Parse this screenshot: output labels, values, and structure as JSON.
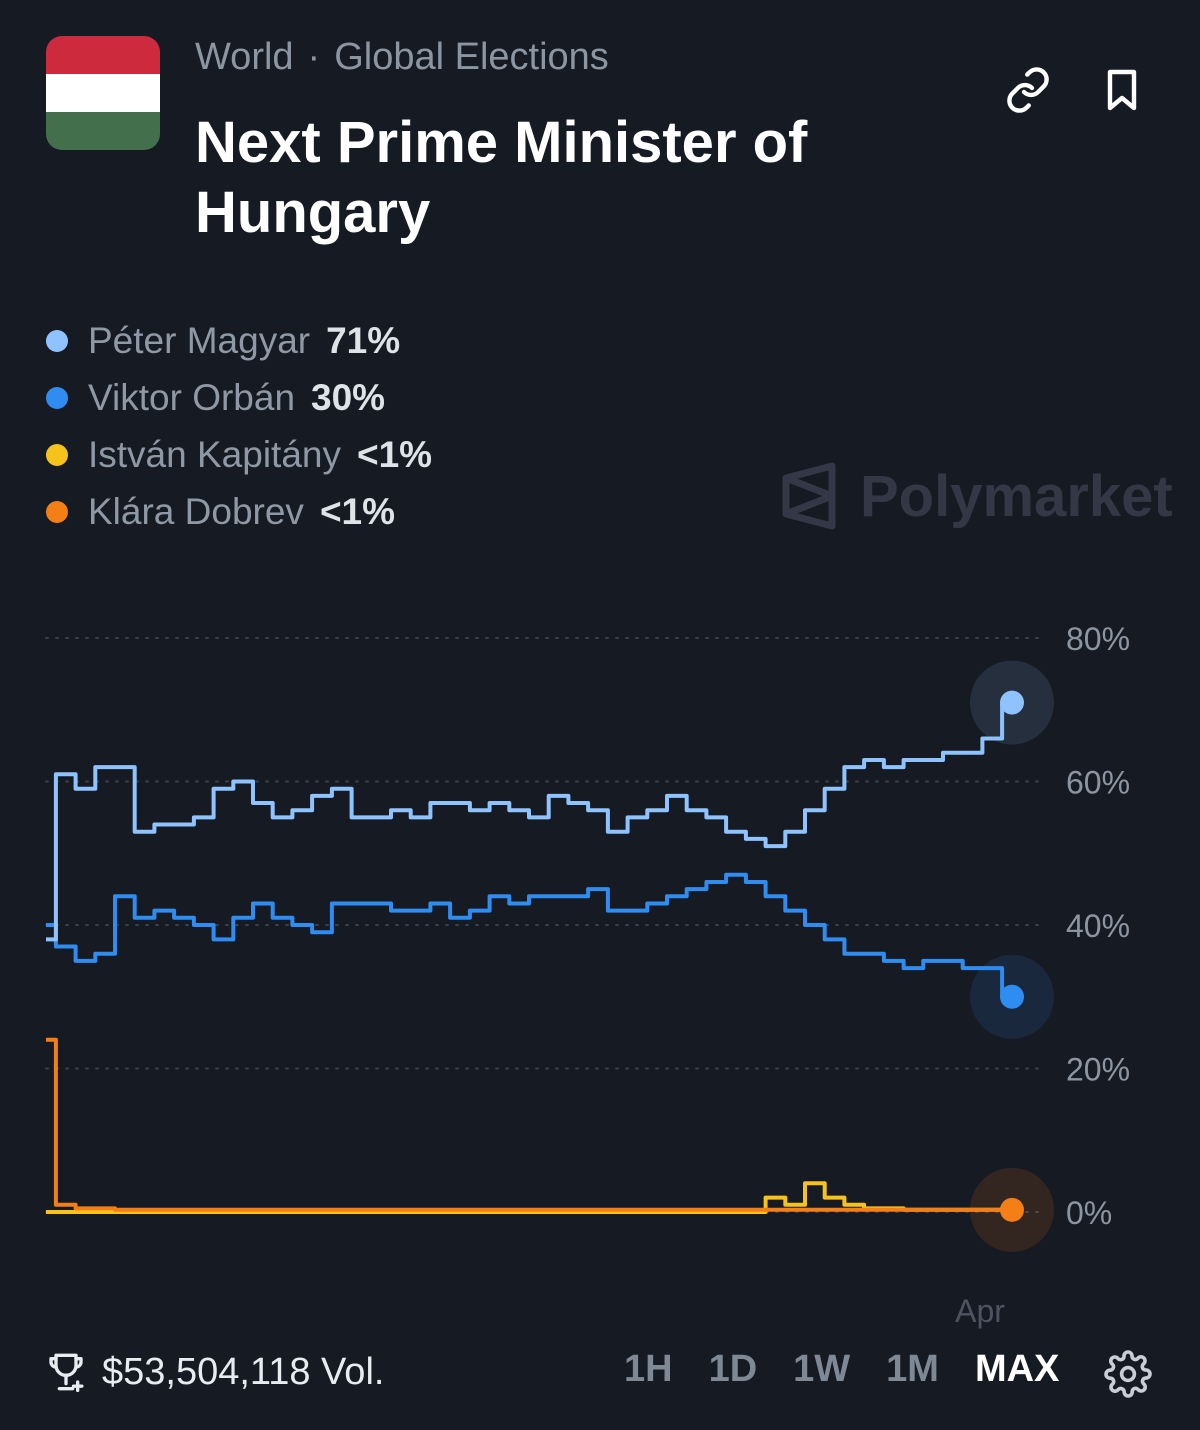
{
  "header": {
    "breadcrumb": [
      "World",
      "Global Elections"
    ],
    "breadcrumb_sep": "·",
    "title": "Next Prime Minister of Hungary",
    "flag_colors": [
      "#cd2a3e",
      "#ffffff",
      "#436f4d"
    ]
  },
  "actions": {
    "link_icon": "link-icon",
    "bookmark_icon": "bookmark-icon"
  },
  "legend": [
    {
      "name": "Péter Magyar",
      "pct": "71%",
      "color": "#8ec3ff"
    },
    {
      "name": "Viktor Orbán",
      "pct": "30%",
      "color": "#2f8cf0"
    },
    {
      "name": "István Kapitány",
      "pct": "<1%",
      "color": "#f6c21c"
    },
    {
      "name": "Klára Dobrev",
      "pct": "<1%",
      "color": "#f57f17"
    }
  ],
  "watermark": "Polymarket",
  "chart_data": {
    "type": "line",
    "y_ticks": [
      "80%",
      "60%",
      "40%",
      "20%",
      "0%"
    ],
    "ylim": [
      0,
      80
    ],
    "x_tick_labels": [
      "Apr"
    ],
    "grid": "dotted horizontal",
    "series": [
      {
        "name": "Péter Magyar",
        "color": "#8ec3ff",
        "values": [
          38,
          61,
          59,
          62,
          62,
          53,
          54,
          54,
          55,
          59,
          60,
          57,
          55,
          56,
          58,
          59,
          55,
          55,
          56,
          55,
          57,
          57,
          56,
          57,
          56,
          55,
          58,
          57,
          56,
          53,
          55,
          56,
          58,
          56,
          55,
          53,
          52,
          51,
          53,
          56,
          59,
          62,
          63,
          62,
          63,
          63,
          64,
          64,
          66,
          71
        ]
      },
      {
        "name": "Viktor Orbán",
        "color": "#2f8cf0",
        "values": [
          40,
          37,
          35,
          36,
          44,
          41,
          42,
          41,
          40,
          38,
          41,
          43,
          41,
          40,
          39,
          43,
          43,
          43,
          42,
          42,
          43,
          41,
          42,
          44,
          43,
          44,
          44,
          44,
          45,
          42,
          42,
          43,
          44,
          45,
          46,
          47,
          46,
          44,
          42,
          40,
          38,
          36,
          36,
          35,
          34,
          35,
          35,
          34,
          34,
          30
        ]
      },
      {
        "name": "István Kapitány",
        "color": "#f6c21c",
        "values": [
          0,
          0,
          0,
          0,
          0,
          0,
          0,
          0,
          0,
          0,
          0,
          0,
          0,
          0,
          0,
          0,
          0,
          0,
          0,
          0,
          0,
          0,
          0,
          0,
          0,
          0,
          0,
          0,
          0,
          0,
          0,
          0,
          0,
          0,
          0,
          0,
          0,
          2,
          1,
          4,
          2,
          1,
          0.5,
          0.5,
          0.3,
          0.3,
          0.3,
          0.3,
          0.3,
          0.3
        ]
      },
      {
        "name": "Klára Dobrev",
        "color": "#f57f17",
        "values": [
          24,
          1,
          0.5,
          0.5,
          0.3,
          0.3,
          0.3,
          0.3,
          0.3,
          0.3,
          0.3,
          0.3,
          0.3,
          0.3,
          0.3,
          0.3,
          0.3,
          0.3,
          0.3,
          0.3,
          0.3,
          0.3,
          0.3,
          0.3,
          0.3,
          0.3,
          0.3,
          0.3,
          0.3,
          0.3,
          0.3,
          0.3,
          0.3,
          0.3,
          0.3,
          0.3,
          0.3,
          0.3,
          0.3,
          0.3,
          0.3,
          0.3,
          0.3,
          0.3,
          0.3,
          0.3,
          0.3,
          0.3,
          0.3,
          0.3
        ]
      }
    ]
  },
  "footer": {
    "volume": "$53,504,118 Vol.",
    "trophy_icon": "trophy-icon",
    "ranges": [
      "1H",
      "1D",
      "1W",
      "1M",
      "MAX"
    ],
    "active_range": "MAX",
    "settings_icon": "gear-icon"
  }
}
